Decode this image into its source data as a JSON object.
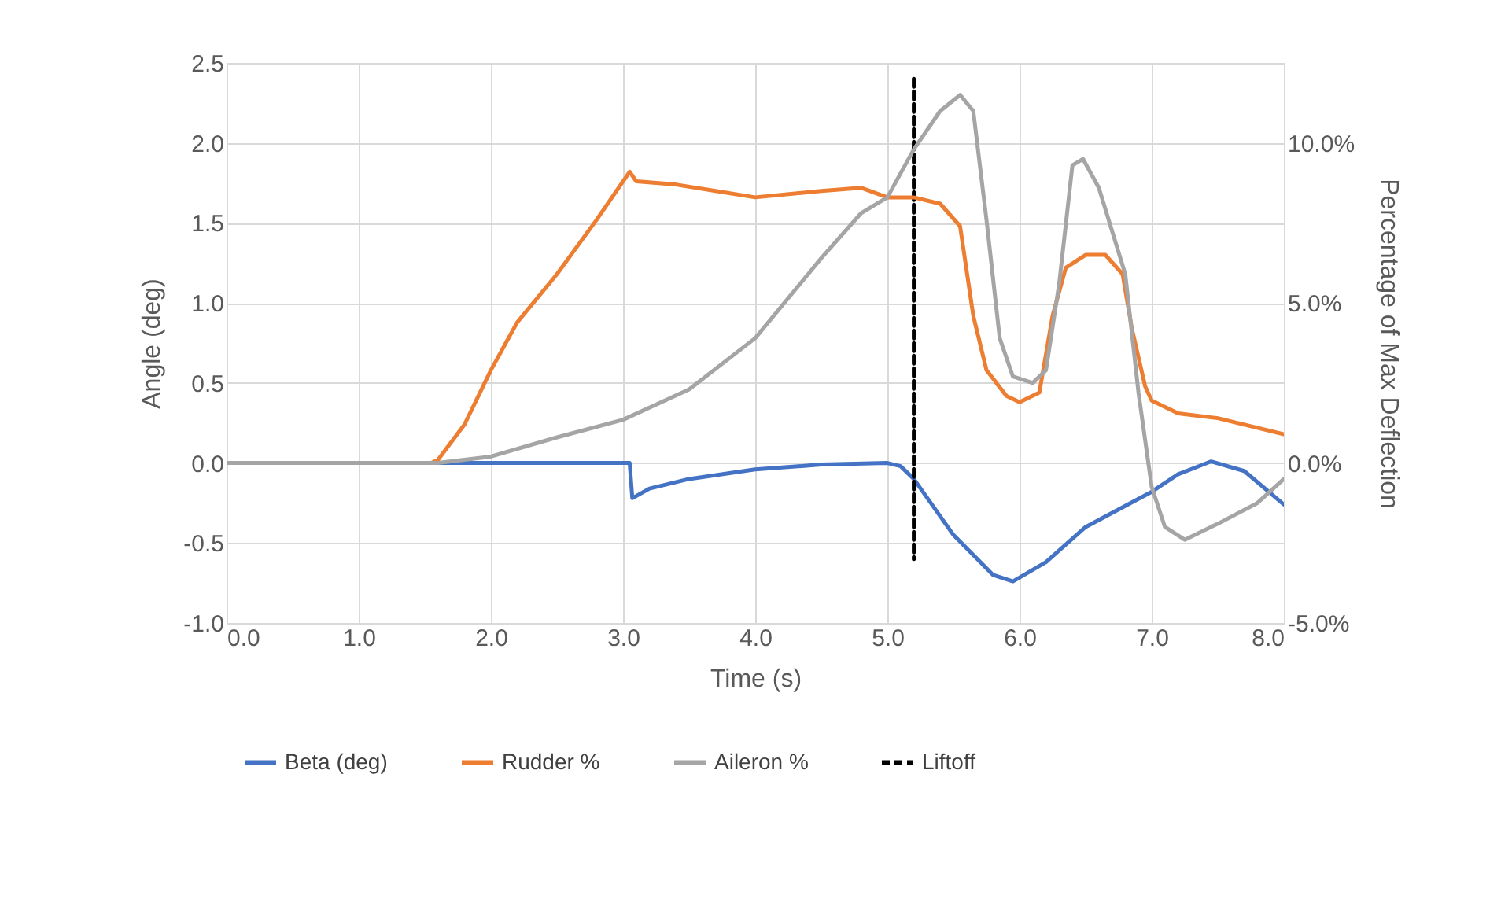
{
  "chart_data": {
    "type": "line",
    "xlabel": "Time (s)",
    "ylabel": "Angle (deg)",
    "y2label": "Percentage of Max Deflection",
    "xlim": [
      0,
      8
    ],
    "xticks": [
      {
        "value": 0,
        "label": "0.0"
      },
      {
        "value": 1,
        "label": "1.0"
      },
      {
        "value": 2,
        "label": "2.0"
      },
      {
        "value": 3,
        "label": "3.0"
      },
      {
        "value": 4,
        "label": "4.0"
      },
      {
        "value": 5,
        "label": "5.0"
      },
      {
        "value": 6,
        "label": "6.0"
      },
      {
        "value": 7,
        "label": "7.0"
      },
      {
        "value": 8,
        "label": "8.0"
      }
    ],
    "ylim": [
      -1,
      2.5
    ],
    "yticks": [
      {
        "value": -1,
        "label": "-1.0"
      },
      -0.5,
      {
        "value": 0,
        "label": "0.0"
      },
      0.5,
      {
        "value": 1,
        "label": "1.0"
      },
      1.5,
      {
        "value": 2,
        "label": "2.0"
      },
      2.5
    ],
    "y2lim": [
      -5,
      12.5
    ],
    "y2ticks": [
      {
        "value": -5,
        "label": "-5.0%"
      },
      {
        "value": 0,
        "label": "0.0%"
      },
      {
        "value": 5,
        "label": "5.0%"
      },
      {
        "value": 10,
        "label": "10.0%"
      }
    ],
    "grid": true,
    "legend": "bottom",
    "marker": "none",
    "series": [
      {
        "name": "Beta (deg)",
        "color": "#4472c4",
        "x": [
          0,
          1,
          2,
          3.05,
          3.07,
          3.2,
          3.5,
          4.0,
          4.5,
          5.0,
          5.1,
          5.2,
          5.5,
          5.8,
          5.95,
          6.2,
          6.5,
          7.0,
          7.2,
          7.45,
          7.7,
          8.0
        ],
        "values": [
          0,
          0,
          0,
          0,
          -0.22,
          -0.16,
          -0.1,
          -0.04,
          -0.01,
          0,
          -0.02,
          -0.1,
          -0.45,
          -0.7,
          -0.74,
          -0.62,
          -0.4,
          -0.18,
          -0.07,
          0.01,
          -0.05,
          -0.26
        ]
      },
      {
        "name": "Rudder %",
        "color": "#ed7d31",
        "axis": "y2",
        "x": [
          0,
          1,
          1.55,
          1.6,
          1.8,
          2.0,
          2.2,
          2.5,
          2.8,
          3.05,
          3.1,
          3.4,
          3.7,
          4.0,
          4.5,
          4.8,
          5.0,
          5.2,
          5.4,
          5.55,
          5.65,
          5.75,
          5.9,
          6.0,
          6.15,
          6.25,
          6.35,
          6.5,
          6.65,
          6.78,
          6.85,
          6.95,
          7.0,
          7.2,
          7.5,
          8.0
        ],
        "values": [
          0,
          0,
          0,
          0.1,
          1.2,
          2.9,
          4.4,
          5.9,
          7.6,
          9.1,
          8.8,
          8.7,
          8.5,
          8.3,
          8.5,
          8.6,
          8.3,
          8.3,
          8.1,
          7.4,
          4.6,
          2.9,
          2.1,
          1.9,
          2.2,
          4.6,
          6.1,
          6.5,
          6.5,
          5.9,
          4.2,
          2.4,
          1.95,
          1.55,
          1.4,
          0.9
        ]
      },
      {
        "name": "Aileron %",
        "color": "#a5a5a5",
        "axis": "y2",
        "x": [
          0,
          1,
          1.6,
          2.0,
          2.5,
          3.0,
          3.5,
          4.0,
          4.5,
          4.8,
          5.0,
          5.2,
          5.4,
          5.55,
          5.65,
          5.75,
          5.85,
          5.95,
          6.1,
          6.2,
          6.3,
          6.4,
          6.48,
          6.6,
          6.8,
          6.9,
          7.0,
          7.1,
          7.25,
          7.5,
          7.8,
          8.0
        ],
        "values": [
          0,
          0,
          0,
          0.2,
          0.8,
          1.35,
          2.3,
          3.9,
          6.4,
          7.8,
          8.3,
          9.8,
          11.0,
          11.5,
          11.0,
          7.6,
          3.9,
          2.7,
          2.5,
          2.9,
          5.6,
          9.3,
          9.5,
          8.6,
          5.9,
          2.2,
          -0.75,
          -2.0,
          -2.4,
          -1.9,
          -1.25,
          -0.5
        ]
      },
      {
        "name": "Liftoff",
        "color": "#000000",
        "line_style": "dashed",
        "x": [
          5.2,
          5.2
        ],
        "values": [
          2.4,
          -0.6
        ]
      }
    ]
  }
}
